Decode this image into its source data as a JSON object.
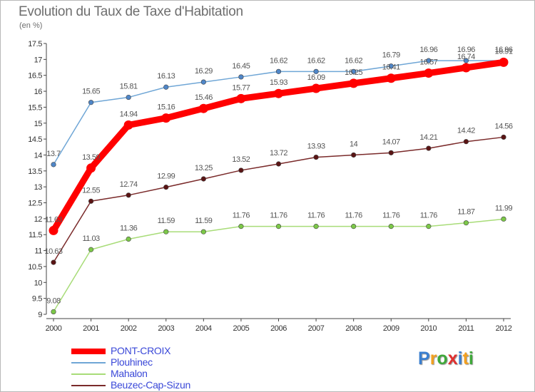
{
  "title": "Evolution du Taux de Taxe d'Habitation",
  "subtitle": "(en %)",
  "chart_data": {
    "type": "line",
    "x": [
      2000,
      2001,
      2002,
      2003,
      2004,
      2005,
      2006,
      2007,
      2008,
      2009,
      2010,
      2011,
      2012
    ],
    "ylim": [
      9,
      17.5
    ],
    "yticks": [
      9,
      9.5,
      10,
      10.5,
      11,
      11.5,
      12,
      12.5,
      13,
      13.5,
      14,
      14.5,
      15,
      15.5,
      16,
      16.5,
      17,
      17.5
    ],
    "grid": false,
    "legend_position": "bottom-left",
    "series": [
      {
        "name": "Plouhinec",
        "color": "#6fa6d6",
        "point_color": "#4f86c8",
        "values": [
          13.7,
          15.65,
          15.81,
          16.13,
          16.29,
          16.45,
          16.62,
          16.62,
          16.62,
          16.79,
          16.96,
          16.96,
          16.96
        ]
      },
      {
        "name": "Beuzec-Cap-Sizun",
        "color": "#7a2a2a",
        "point_color": "#5a1414",
        "values": [
          10.63,
          12.55,
          12.74,
          12.99,
          13.25,
          13.52,
          13.72,
          13.93,
          14,
          14.07,
          14.21,
          14.42,
          14.56
        ]
      },
      {
        "name": "Mahalon",
        "color": "#a8dc78",
        "point_color": "#7cc848",
        "values": [
          9.08,
          11.03,
          11.36,
          11.59,
          11.59,
          11.76,
          11.76,
          11.76,
          11.76,
          11.76,
          11.76,
          11.87,
          11.99
        ]
      },
      {
        "name": "PONT-CROIX",
        "color": "#ff0000",
        "point_color": "#ff0000",
        "values": [
          11.63,
          13.59,
          14.94,
          15.16,
          15.46,
          15.77,
          15.93,
          16.09,
          16.25,
          16.41,
          16.57,
          16.74,
          16.91
        ]
      }
    ]
  },
  "legend": [
    {
      "label": "PONT-CROIX",
      "color": "#ff0000",
      "thick": true
    },
    {
      "label": "Plouhinec",
      "color": "#6fa6d6",
      "thick": false
    },
    {
      "label": "Mahalon",
      "color": "#a8dc78",
      "thick": false
    },
    {
      "label": "Beuzec-Cap-Sizun",
      "color": "#7a2a2a",
      "thick": false
    }
  ],
  "logo": {
    "letters": [
      "P",
      "r",
      "o",
      "x",
      "i",
      "t",
      "i"
    ],
    "colors": [
      "#3a7fd0",
      "#f2a020",
      "#3fa83a",
      "#e03030",
      "#3a7fd0",
      "#f2a020",
      "#3fa83a"
    ]
  }
}
